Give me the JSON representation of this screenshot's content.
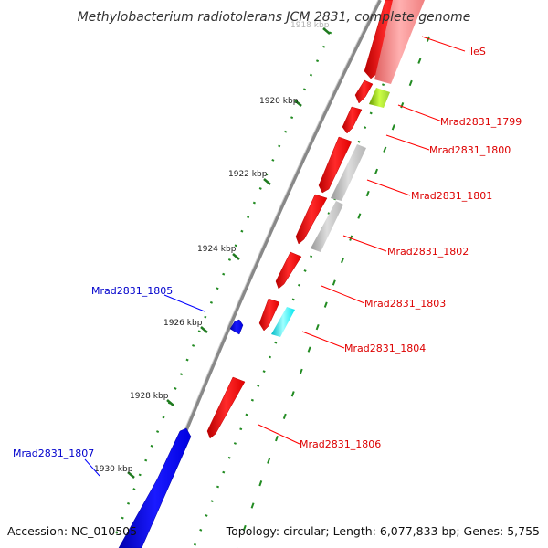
{
  "title": "Methylobacterium radiotolerans JCM 2831, complete genome",
  "accession": "Accession: NC_010505",
  "topology": "Topology: circular; Length: 6,077,833 bp; Genes: 5,755",
  "ticks": [
    "1918 kbp",
    "1920 kbp",
    "1922 kbp",
    "1924 kbp",
    "1926 kbp",
    "1928 kbp",
    "1930 kbp"
  ],
  "genes": [
    {
      "name": "ileS",
      "strand": "reverse",
      "color": "#ff0000"
    },
    {
      "name": "Mrad2831_1799",
      "strand": "reverse",
      "color": "#ff0000"
    },
    {
      "name": "Mrad2831_1800",
      "strand": "reverse",
      "color": "#ff0000"
    },
    {
      "name": "Mrad2831_1801",
      "strand": "reverse",
      "color": "#ff0000"
    },
    {
      "name": "Mrad2831_1802",
      "strand": "reverse",
      "color": "#ff0000"
    },
    {
      "name": "Mrad2831_1803",
      "strand": "reverse",
      "color": "#ff0000"
    },
    {
      "name": "Mrad2831_1804",
      "strand": "reverse",
      "color": "#ff0000"
    },
    {
      "name": "Mrad2831_1805",
      "strand": "forward",
      "color": "#0000ff"
    },
    {
      "name": "Mrad2831_1806",
      "strand": "reverse",
      "color": "#ff0000"
    },
    {
      "name": "Mrad2831_1807",
      "strand": "forward",
      "color": "#0000ff"
    }
  ],
  "colors": {
    "forward": "#0000ff",
    "reverse": "#ff0000",
    "backbone": "#888888",
    "track_dots": "#228b22",
    "gray_track": "#bbbbbb",
    "green_track": "#99cc33",
    "cyan_track": "#00e5ee",
    "pink_track": "#f08080"
  }
}
